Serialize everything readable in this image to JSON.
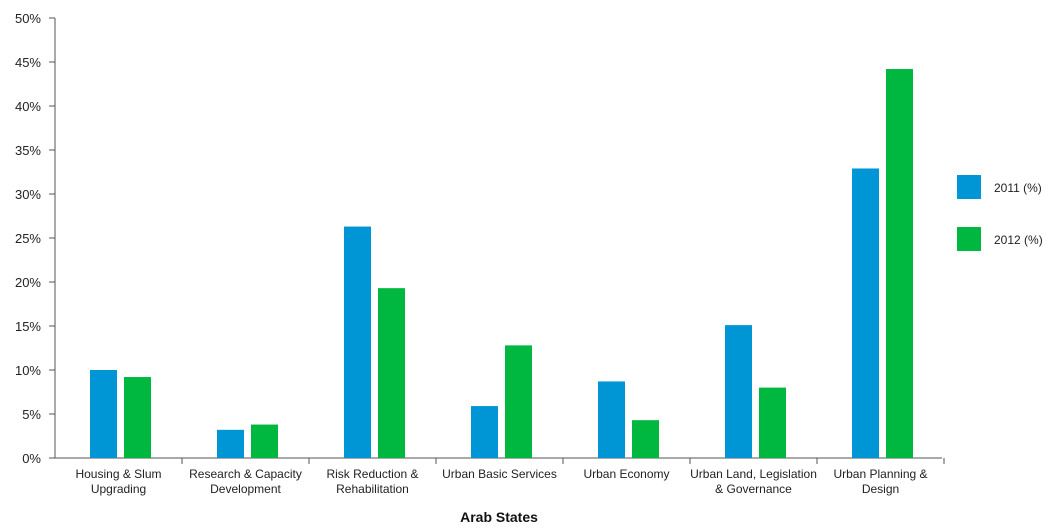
{
  "chart_data": {
    "type": "bar",
    "title": "",
    "xlabel": "Arab States",
    "ylabel": "",
    "ylim": [
      0,
      50
    ],
    "yticks": [
      "0%",
      "5%",
      "10%",
      "15%",
      "20%",
      "25%",
      "30%",
      "35%",
      "40%",
      "45%",
      "50%"
    ],
    "ytick_values": [
      0,
      5,
      10,
      15,
      20,
      25,
      30,
      35,
      40,
      45,
      50
    ],
    "grid": false,
    "legend_position": "right",
    "categories": [
      [
        "Housing & Slum",
        "Upgrading"
      ],
      [
        "Research & Capacity",
        "Development"
      ],
      [
        "Risk Reduction &",
        "Rehabilitation"
      ],
      [
        "Urban Basic Services"
      ],
      [
        "Urban Economy"
      ],
      [
        "Urban Land, Legislation",
        "& Governance"
      ],
      [
        "Urban Planning &",
        "Design"
      ]
    ],
    "series": [
      {
        "name": "2011 (%)",
        "color": "#0096d6",
        "values": [
          10.0,
          3.2,
          26.3,
          5.9,
          8.7,
          15.1,
          32.9
        ]
      },
      {
        "name": "2012 (%)",
        "color": "#00b840",
        "values": [
          9.2,
          3.8,
          19.3,
          12.8,
          4.3,
          8.0,
          44.2
        ]
      }
    ]
  }
}
